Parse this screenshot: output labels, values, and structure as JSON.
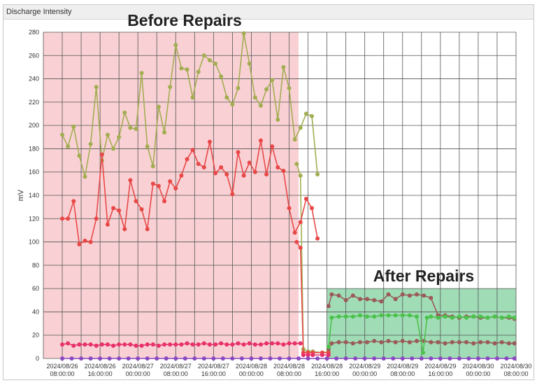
{
  "panel": {
    "title": "Discharge Intensity"
  },
  "chart_data": {
    "type": "line",
    "title": "",
    "xlabel": "",
    "ylabel": "mV",
    "ylim": [
      0,
      280
    ],
    "yticks": [
      0,
      20,
      40,
      60,
      80,
      100,
      120,
      140,
      160,
      180,
      200,
      220,
      240,
      260,
      280
    ],
    "xlim": [
      "2024-08-26 04:00",
      "2024-08-30 08:00"
    ],
    "x_tick_labels": [
      [
        "2024/08/26",
        "08:00:00"
      ],
      [
        "2024/08/26",
        "16:00:00"
      ],
      [
        "2024/08/27",
        "00:00:00"
      ],
      [
        "2024/08/27",
        "08:00:00"
      ],
      [
        "2024/08/27",
        "16:00:00"
      ],
      [
        "2024/08/28",
        "00:00:00"
      ],
      [
        "2024/08/28",
        "08:00:00"
      ],
      [
        "2024/08/28",
        "16:00:00"
      ],
      [
        "2024/08/29",
        "00:00:00"
      ],
      [
        "2024/08/29",
        "08:00:00"
      ],
      [
        "2024/08/29",
        "16:00:00"
      ],
      [
        "2024/08/30",
        "00:00:00"
      ],
      [
        "2024/08/30",
        "08:00:00"
      ]
    ],
    "grid": true,
    "regions": [
      {
        "label": "Before Repairs",
        "x_start": "2024-08-26 04:00",
        "x_end": "2024-08-28 10:00",
        "y_top": 280,
        "color": "#f8c9cc"
      },
      {
        "label": "After Repairs",
        "x_start": "2024-08-28 16:00",
        "x_end": "2024-08-30 08:00",
        "y_top": 60,
        "color": "#8fd6a9"
      }
    ],
    "series": [
      {
        "color": "#a3ad52",
        "segments": [
          {
            "x": [
              "2024-08-26 08:00",
              "2024-08-26 09:12",
              "2024-08-26 10:24",
              "2024-08-26 11:36",
              "2024-08-26 12:48",
              "2024-08-26 14:00",
              "2024-08-26 15:12",
              "2024-08-26 16:24",
              "2024-08-26 17:36",
              "2024-08-26 18:48",
              "2024-08-26 20:00",
              "2024-08-26 21:12",
              "2024-08-26 22:24",
              "2024-08-26 23:36",
              "2024-08-27 00:48",
              "2024-08-27 02:00",
              "2024-08-27 03:12",
              "2024-08-27 04:24",
              "2024-08-27 05:36",
              "2024-08-27 06:48",
              "2024-08-27 08:00",
              "2024-08-27 09:12",
              "2024-08-27 10:24",
              "2024-08-27 11:36",
              "2024-08-27 12:48",
              "2024-08-27 14:00",
              "2024-08-27 15:12",
              "2024-08-27 16:24",
              "2024-08-27 17:36",
              "2024-08-27 18:48",
              "2024-08-27 20:00",
              "2024-08-27 21:12",
              "2024-08-27 22:24",
              "2024-08-27 23:36",
              "2024-08-28 00:48",
              "2024-08-28 02:00",
              "2024-08-28 03:12",
              "2024-08-28 04:24",
              "2024-08-28 05:36",
              "2024-08-28 06:48",
              "2024-08-28 08:00",
              "2024-08-28 09:12",
              "2024-08-28 10:24",
              "2024-08-28 11:36",
              "2024-08-28 12:48",
              "2024-08-28 14:00"
            ],
            "y": [
              192,
              182,
              199,
              174,
              156,
              184,
              233,
              170,
              192,
              180,
              190,
              211,
              198,
              197,
              245,
              182,
              165,
              216,
              194,
              233,
              269,
              249,
              248,
              224,
              246,
              260,
              256,
              253,
              242,
              224,
              218,
              232,
              279,
              253,
              224,
              217,
              231,
              239,
              205,
              250,
              232,
              188,
              198,
              210,
              208,
              158
            ]
          },
          {
            "x": [
              "2024-08-28 09:36",
              "2024-08-28 10:24",
              "2024-08-28 11:00",
              "2024-08-28 12:00",
              "2024-08-28 13:00",
              "2024-08-28 15:00",
              "2024-08-28 16:20"
            ],
            "y": [
              167,
              157,
              8,
              6,
              6,
              5,
              6
            ]
          }
        ]
      },
      {
        "color": "#e84848",
        "segments": [
          {
            "x": [
              "2024-08-26 08:00",
              "2024-08-26 09:12",
              "2024-08-26 10:24",
              "2024-08-26 11:36",
              "2024-08-26 12:48",
              "2024-08-26 14:00",
              "2024-08-26 15:12",
              "2024-08-26 16:24",
              "2024-08-26 17:36",
              "2024-08-26 18:48",
              "2024-08-26 20:00",
              "2024-08-26 21:12",
              "2024-08-26 22:24",
              "2024-08-26 23:36",
              "2024-08-27 00:48",
              "2024-08-27 02:00",
              "2024-08-27 03:12",
              "2024-08-27 04:24",
              "2024-08-27 05:36",
              "2024-08-27 06:48",
              "2024-08-27 08:00",
              "2024-08-27 09:12",
              "2024-08-27 10:24",
              "2024-08-27 11:36",
              "2024-08-27 12:48",
              "2024-08-27 14:00",
              "2024-08-27 15:12",
              "2024-08-27 16:24",
              "2024-08-27 17:36",
              "2024-08-27 18:48",
              "2024-08-27 20:00",
              "2024-08-27 21:12",
              "2024-08-27 22:24",
              "2024-08-27 23:36",
              "2024-08-28 00:48",
              "2024-08-28 02:00",
              "2024-08-28 03:12",
              "2024-08-28 04:24",
              "2024-08-28 05:36",
              "2024-08-28 06:48",
              "2024-08-28 08:00",
              "2024-08-28 09:12",
              "2024-08-28 10:24",
              "2024-08-28 11:36",
              "2024-08-28 12:48",
              "2024-08-28 14:00"
            ],
            "y": [
              120,
              120,
              135,
              98,
              101,
              100,
              120,
              175,
              115,
              129,
              127,
              111,
              153,
              135,
              128,
              111,
              150,
              148,
              135,
              152,
              146,
              157,
              171,
              179,
              167,
              164,
              186,
              159,
              164,
              158,
              141,
              177,
              157,
              168,
              160,
              187,
              158,
              182,
              164,
              161,
              129,
              108,
              117,
              137,
              129,
              103
            ]
          },
          {
            "x": [
              "2024-08-28 09:36",
              "2024-08-28 10:24",
              "2024-08-28 11:00",
              "2024-08-28 12:00",
              "2024-08-28 13:00",
              "2024-08-28 15:00",
              "2024-08-28 16:20"
            ],
            "y": [
              100,
              95,
              5,
              5,
              5,
              5,
              5
            ]
          }
        ]
      },
      {
        "color": "#e8306a",
        "segments": [
          {
            "x": [
              "2024-08-26 08:00",
              "2024-08-26 09:12",
              "2024-08-26 10:24",
              "2024-08-26 11:36",
              "2024-08-26 12:48",
              "2024-08-26 14:00",
              "2024-08-26 15:12",
              "2024-08-26 16:24",
              "2024-08-26 17:36",
              "2024-08-26 18:48",
              "2024-08-26 20:00",
              "2024-08-26 21:12",
              "2024-08-26 22:24",
              "2024-08-26 23:36",
              "2024-08-27 00:48",
              "2024-08-27 02:00",
              "2024-08-27 03:12",
              "2024-08-27 04:24",
              "2024-08-27 05:36",
              "2024-08-27 06:48",
              "2024-08-27 08:00",
              "2024-08-27 09:12",
              "2024-08-27 10:24",
              "2024-08-27 11:36",
              "2024-08-27 12:48",
              "2024-08-27 14:00",
              "2024-08-27 15:12",
              "2024-08-27 16:24",
              "2024-08-27 17:36",
              "2024-08-27 18:48",
              "2024-08-27 20:00",
              "2024-08-27 21:12",
              "2024-08-27 22:24",
              "2024-08-27 23:36",
              "2024-08-28 00:48",
              "2024-08-28 02:00",
              "2024-08-28 03:12",
              "2024-08-28 04:24",
              "2024-08-28 05:36",
              "2024-08-28 06:48",
              "2024-08-28 08:00",
              "2024-08-28 09:12",
              "2024-08-28 10:24"
            ],
            "y": [
              12,
              13,
              11,
              12,
              12,
              12,
              11,
              12,
              12,
              11,
              12,
              12,
              12,
              11,
              11,
              12,
              12,
              11,
              12,
              12,
              12,
              12,
              13,
              12,
              12,
              13,
              12,
              12,
              13,
              12,
              12,
              13,
              12,
              13,
              12,
              12,
              13,
              13,
              13,
              12,
              13,
              13,
              13
            ]
          },
          {
            "x": [
              "2024-08-28 11:00",
              "2024-08-28 12:00",
              "2024-08-28 13:00",
              "2024-08-28 15:00",
              "2024-08-28 16:20"
            ],
            "y": [
              3,
              3,
              3,
              3,
              3
            ]
          }
        ]
      },
      {
        "color": "#9a5a58",
        "segments": [
          {
            "x": [
              "2024-08-28 16:20",
              "2024-08-28 17:00",
              "2024-08-28 18:30",
              "2024-08-28 20:00",
              "2024-08-28 21:30",
              "2024-08-28 23:00",
              "2024-08-29 00:30",
              "2024-08-29 02:00",
              "2024-08-29 03:30",
              "2024-08-29 05:00",
              "2024-08-29 06:30",
              "2024-08-29 08:00",
              "2024-08-29 09:30",
              "2024-08-29 11:00",
              "2024-08-29 12:30",
              "2024-08-29 14:00",
              "2024-08-29 15:30",
              "2024-08-29 17:00",
              "2024-08-29 18:30",
              "2024-08-29 20:00",
              "2024-08-29 21:30",
              "2024-08-29 23:00",
              "2024-08-30 00:30",
              "2024-08-30 02:00",
              "2024-08-30 03:30",
              "2024-08-30 05:00",
              "2024-08-30 06:30",
              "2024-08-30 07:40"
            ],
            "y": [
              45,
              55,
              54,
              50,
              54,
              51,
              51,
              50,
              49,
              55,
              51,
              55,
              54,
              55,
              54,
              52,
              37,
              37,
              36,
              35,
              36,
              36,
              35,
              35,
              36,
              35,
              35,
              34
            ]
          },
          {
            "x": [
              "2024-08-28 16:20",
              "2024-08-28 17:00",
              "2024-08-28 18:30",
              "2024-08-28 20:00",
              "2024-08-28 21:30",
              "2024-08-28 23:00",
              "2024-08-29 00:30",
              "2024-08-29 02:00",
              "2024-08-29 03:30",
              "2024-08-29 05:00",
              "2024-08-29 06:30",
              "2024-08-29 08:00",
              "2024-08-29 09:30",
              "2024-08-29 11:00",
              "2024-08-29 12:30",
              "2024-08-29 14:00",
              "2024-08-29 15:30",
              "2024-08-29 17:00",
              "2024-08-29 18:30",
              "2024-08-29 20:00",
              "2024-08-29 21:30",
              "2024-08-29 23:00",
              "2024-08-30 00:30",
              "2024-08-30 02:00",
              "2024-08-30 03:30",
              "2024-08-30 05:00",
              "2024-08-30 06:30",
              "2024-08-30 07:40"
            ],
            "y": [
              8,
              13,
              14,
              14,
              13,
              14,
              14,
              15,
              14,
              15,
              14,
              15,
              14,
              15,
              15,
              14,
              14,
              13,
              14,
              14,
              14,
              13,
              14,
              14,
              13,
              14,
              13,
              13
            ]
          }
        ]
      },
      {
        "color": "#4cc24c",
        "segments": [
          {
            "x": [
              "2024-08-28 16:20",
              "2024-08-28 17:00",
              "2024-08-28 18:30",
              "2024-08-28 20:00",
              "2024-08-28 21:30",
              "2024-08-28 23:00",
              "2024-08-29 00:30",
              "2024-08-29 02:00",
              "2024-08-29 03:30",
              "2024-08-29 05:00",
              "2024-08-29 06:30",
              "2024-08-29 08:00",
              "2024-08-29 09:30",
              "2024-08-29 11:00",
              "2024-08-29 12:20",
              "2024-08-29 13:10",
              "2024-08-29 14:00",
              "2024-08-29 15:30",
              "2024-08-29 17:00",
              "2024-08-29 18:30",
              "2024-08-29 20:00",
              "2024-08-29 21:30",
              "2024-08-29 23:00",
              "2024-08-30 00:30",
              "2024-08-30 02:00",
              "2024-08-30 03:30",
              "2024-08-30 05:00",
              "2024-08-30 06:30",
              "2024-08-30 07:40"
            ],
            "y": [
              10,
              35,
              36,
              36,
              36,
              37,
              36,
              36,
              37,
              37,
              37,
              37,
              37,
              36,
              5,
              35,
              36,
              35,
              36,
              35,
              36,
              35,
              36,
              36,
              35,
              36,
              35,
              36,
              35
            ]
          }
        ]
      },
      {
        "color": "#8a48c0",
        "segments": [
          {
            "x": [
              "2024-08-26 08:00",
              "2024-08-26 10:00",
              "2024-08-26 12:00",
              "2024-08-26 14:00",
              "2024-08-26 16:00",
              "2024-08-26 18:00",
              "2024-08-26 20:00",
              "2024-08-26 22:00",
              "2024-08-27 00:00",
              "2024-08-27 02:00",
              "2024-08-27 04:00",
              "2024-08-27 06:00",
              "2024-08-27 08:00",
              "2024-08-27 10:00",
              "2024-08-27 12:00",
              "2024-08-27 14:00",
              "2024-08-27 16:00",
              "2024-08-27 18:00",
              "2024-08-27 20:00",
              "2024-08-27 22:00",
              "2024-08-28 00:00",
              "2024-08-28 02:00",
              "2024-08-28 04:00",
              "2024-08-28 06:00",
              "2024-08-28 08:00",
              "2024-08-28 10:00",
              "2024-08-28 12:00",
              "2024-08-28 14:00",
              "2024-08-28 16:00",
              "2024-08-28 18:00",
              "2024-08-28 20:00",
              "2024-08-28 22:00",
              "2024-08-29 00:00",
              "2024-08-29 02:00",
              "2024-08-29 04:00",
              "2024-08-29 06:00",
              "2024-08-29 08:00",
              "2024-08-29 10:00",
              "2024-08-29 12:00",
              "2024-08-29 14:00",
              "2024-08-29 16:00",
              "2024-08-29 18:00",
              "2024-08-29 20:00",
              "2024-08-29 22:00",
              "2024-08-30 00:00",
              "2024-08-30 02:00",
              "2024-08-30 04:00",
              "2024-08-30 06:00",
              "2024-08-30 07:40"
            ],
            "y": [
              0,
              0,
              0,
              0,
              0,
              0,
              0,
              0,
              0,
              0,
              0,
              0,
              0,
              0,
              0,
              0,
              0,
              0,
              0,
              0,
              0,
              0,
              0,
              0,
              0,
              0,
              0,
              0,
              0,
              0,
              0,
              0,
              0,
              0,
              0,
              0,
              0,
              0,
              0,
              0,
              0,
              0,
              0,
              0,
              0,
              0,
              0,
              0,
              0
            ]
          }
        ]
      }
    ]
  }
}
